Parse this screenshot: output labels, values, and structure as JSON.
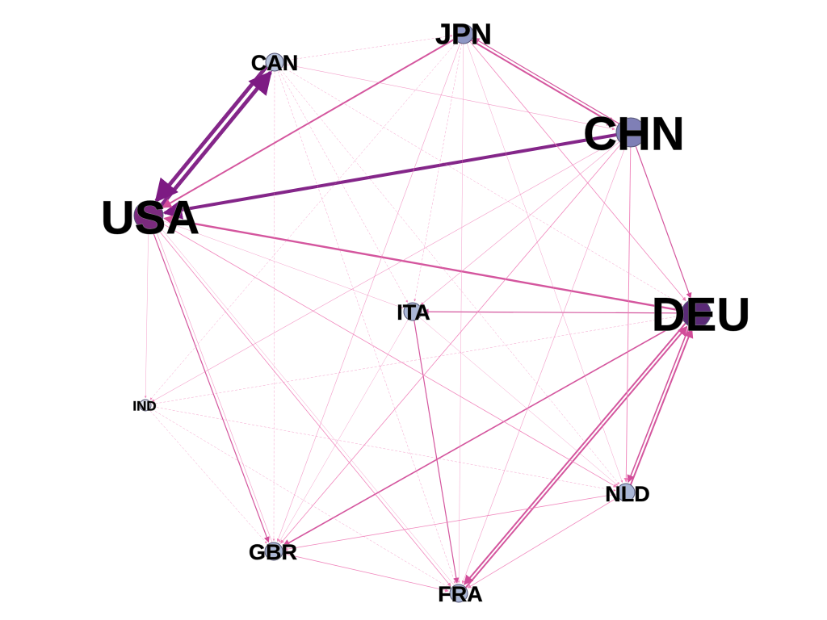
{
  "graph": {
    "nodes": [
      {
        "id": "USA",
        "label": "USA",
        "fill": "#7b2a7e",
        "size": "large"
      },
      {
        "id": "CAN",
        "label": "CAN",
        "fill": "#b7c3dc",
        "size": "small"
      },
      {
        "id": "JPN",
        "label": "JPN",
        "fill": "#8f97c4",
        "size": "medium"
      },
      {
        "id": "CHN",
        "label": "CHN",
        "fill": "#7f7fb6",
        "size": "large"
      },
      {
        "id": "DEU",
        "label": "DEU",
        "fill": "#5a2a76",
        "size": "large"
      },
      {
        "id": "ITA",
        "label": "ITA",
        "fill": "#a9b6d6",
        "size": "small"
      },
      {
        "id": "IND",
        "label": "IND",
        "fill": "#e7ecf5",
        "size": "tiny"
      },
      {
        "id": "NLD",
        "label": "NLD",
        "fill": "#a9b6d6",
        "size": "small"
      },
      {
        "id": "GBR",
        "label": "GBR",
        "fill": "#a9b6d6",
        "size": "small"
      },
      {
        "id": "FRA",
        "label": "FRA",
        "fill": "#a9b6d6",
        "size": "small"
      }
    ],
    "edges": [
      {
        "from": "CHN",
        "to": "USA",
        "weight": 5
      },
      {
        "from": "USA",
        "to": "CAN",
        "weight": 6
      },
      {
        "from": "CAN",
        "to": "USA",
        "weight": 6
      },
      {
        "from": "DEU",
        "to": "USA",
        "weight": 3
      },
      {
        "from": "JPN",
        "to": "USA",
        "weight": 2.5
      },
      {
        "from": "JPN",
        "to": "CHN",
        "weight": 2.5
      },
      {
        "from": "CHN",
        "to": "JPN",
        "weight": 1.5
      },
      {
        "from": "DEU",
        "to": "FRA",
        "weight": 2.5
      },
      {
        "from": "FRA",
        "to": "DEU",
        "weight": 2.5
      },
      {
        "from": "NLD",
        "to": "DEU",
        "weight": 2.5
      },
      {
        "from": "DEU",
        "to": "NLD",
        "weight": 2
      },
      {
        "from": "DEU",
        "to": "GBR",
        "weight": 2
      },
      {
        "from": "CHN",
        "to": "DEU",
        "weight": 1.5
      },
      {
        "from": "DEU",
        "to": "ITA",
        "weight": 1.5
      },
      {
        "from": "ITA",
        "to": "FRA",
        "weight": 1.5
      },
      {
        "from": "USA",
        "to": "GBR",
        "weight": 1.5
      },
      {
        "from": "NLD",
        "to": "GBR",
        "weight": 1
      },
      {
        "from": "NLD",
        "to": "FRA",
        "weight": 1
      },
      {
        "from": "GBR",
        "to": "FRA",
        "weight": 1
      },
      {
        "from": "USA",
        "to": "NLD",
        "weight": 1
      },
      {
        "from": "USA",
        "to": "FRA",
        "weight": 1
      },
      {
        "from": "USA",
        "to": "IND",
        "weight": 0.6
      },
      {
        "from": "CAN",
        "to": "CHN",
        "weight": 0.8
      },
      {
        "from": "CAN",
        "to": "JPN",
        "weight": 0.5
      },
      {
        "from": "CAN",
        "to": "GBR",
        "weight": 0.5
      },
      {
        "from": "CAN",
        "to": "FRA",
        "weight": 0.4
      },
      {
        "from": "CAN",
        "to": "NLD",
        "weight": 0.4
      },
      {
        "from": "CAN",
        "to": "DEU",
        "weight": 0.4
      },
      {
        "from": "CAN",
        "to": "ITA",
        "weight": 0.4
      },
      {
        "from": "JPN",
        "to": "DEU",
        "weight": 1
      },
      {
        "from": "JPN",
        "to": "GBR",
        "weight": 0.8
      },
      {
        "from": "JPN",
        "to": "FRA",
        "weight": 0.6
      },
      {
        "from": "JPN",
        "to": "NLD",
        "weight": 0.6
      },
      {
        "from": "JPN",
        "to": "ITA",
        "weight": 0.5
      },
      {
        "from": "JPN",
        "to": "IND",
        "weight": 0.4
      },
      {
        "from": "CHN",
        "to": "NLD",
        "weight": 1.2
      },
      {
        "from": "CHN",
        "to": "GBR",
        "weight": 1
      },
      {
        "from": "CHN",
        "to": "ITA",
        "weight": 0.8
      },
      {
        "from": "CHN",
        "to": "FRA",
        "weight": 0.8
      },
      {
        "from": "CHN",
        "to": "IND",
        "weight": 0.8
      },
      {
        "from": "DEU",
        "to": "IND",
        "weight": 0.5
      },
      {
        "from": "ITA",
        "to": "NLD",
        "weight": 0.6
      },
      {
        "from": "ITA",
        "to": "GBR",
        "weight": 0.6
      },
      {
        "from": "IND",
        "to": "GBR",
        "weight": 0.5
      },
      {
        "from": "IND",
        "to": "NLD",
        "weight": 0.5
      },
      {
        "from": "IND",
        "to": "FRA",
        "weight": 0.4
      },
      {
        "from": "USA",
        "to": "ITA",
        "weight": 0.6
      },
      {
        "from": "GBR",
        "to": "USA",
        "weight": 0.8
      },
      {
        "from": "FRA",
        "to": "USA",
        "weight": 0.6
      }
    ]
  },
  "colors": {
    "edge_light": "#ef7fb8",
    "edge_mid": "#d24d99",
    "edge_heavy": "#7d1a83"
  }
}
